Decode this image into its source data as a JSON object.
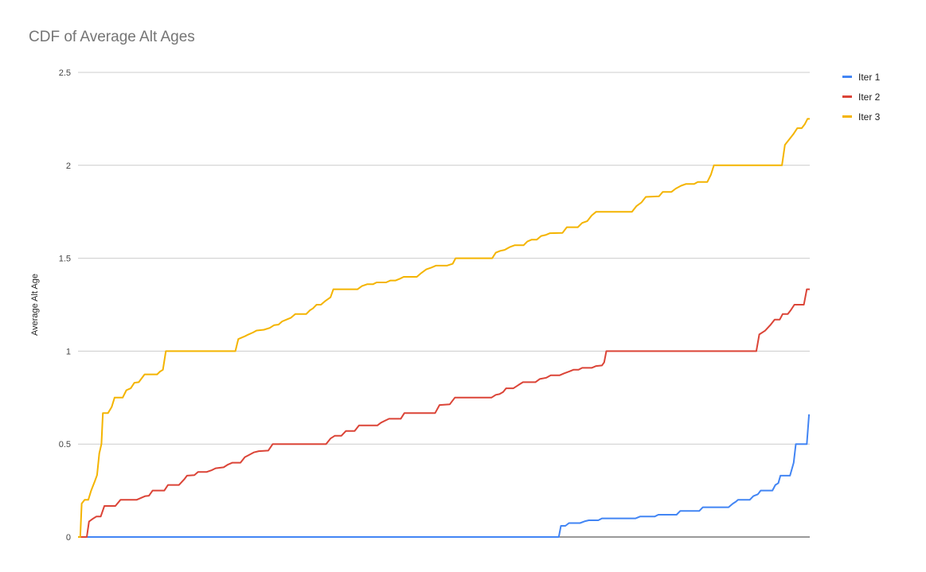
{
  "chart_data": {
    "type": "line",
    "title": "CDF of Average Alt Ages",
    "xlabel": "",
    "ylabel": "Average Alt Age",
    "ylim": [
      0,
      2.5
    ],
    "yticks": [
      "0",
      "0.5",
      "1",
      "1.5",
      "2",
      "2.5"
    ],
    "x_range": [
      0,
      100
    ],
    "grid": true,
    "legend_position": "right",
    "series": [
      {
        "name": "Iter 1",
        "color": "#4285f4",
        "points": [
          [
            0,
            0
          ],
          [
            65.7,
            0
          ],
          [
            66.0,
            0.06
          ],
          [
            66.6,
            0.06
          ],
          [
            67.1,
            0.075
          ],
          [
            68.6,
            0.075
          ],
          [
            69.3,
            0.085
          ],
          [
            69.8,
            0.09
          ],
          [
            71.1,
            0.09
          ],
          [
            71.6,
            0.1
          ],
          [
            76.2,
            0.1
          ],
          [
            76.8,
            0.11
          ],
          [
            78.8,
            0.11
          ],
          [
            79.3,
            0.12
          ],
          [
            81.8,
            0.12
          ],
          [
            82.3,
            0.14
          ],
          [
            84.9,
            0.14
          ],
          [
            85.4,
            0.16
          ],
          [
            88.9,
            0.16
          ],
          [
            89.5,
            0.18
          ],
          [
            89.9,
            0.19
          ],
          [
            90.2,
            0.2
          ],
          [
            91.8,
            0.2
          ],
          [
            92.3,
            0.22
          ],
          [
            92.9,
            0.23
          ],
          [
            93.3,
            0.25
          ],
          [
            94.9,
            0.25
          ],
          [
            95.3,
            0.28
          ],
          [
            95.7,
            0.29
          ],
          [
            96.0,
            0.33
          ],
          [
            97.3,
            0.33
          ],
          [
            97.8,
            0.4
          ],
          [
            98.1,
            0.5
          ],
          [
            99.6,
            0.5
          ],
          [
            99.9,
            0.66
          ]
        ]
      },
      {
        "name": "Iter 2",
        "color": "#db4437",
        "points": [
          [
            0,
            0
          ],
          [
            1.2,
            0
          ],
          [
            1.5,
            0.083
          ],
          [
            2.1,
            0.1
          ],
          [
            2.5,
            0.11
          ],
          [
            3.1,
            0.11
          ],
          [
            3.6,
            0.167
          ],
          [
            5.1,
            0.167
          ],
          [
            5.8,
            0.2
          ],
          [
            8.0,
            0.2
          ],
          [
            8.6,
            0.21
          ],
          [
            9.2,
            0.22
          ],
          [
            9.7,
            0.222
          ],
          [
            10.2,
            0.25
          ],
          [
            11.8,
            0.25
          ],
          [
            12.3,
            0.28
          ],
          [
            13.8,
            0.28
          ],
          [
            14.5,
            0.31
          ],
          [
            14.9,
            0.33
          ],
          [
            15.9,
            0.333
          ],
          [
            16.4,
            0.35
          ],
          [
            17.6,
            0.35
          ],
          [
            18.3,
            0.36
          ],
          [
            18.8,
            0.37
          ],
          [
            19.9,
            0.375
          ],
          [
            20.5,
            0.39
          ],
          [
            21.1,
            0.4
          ],
          [
            22.2,
            0.4
          ],
          [
            22.8,
            0.43
          ],
          [
            23.3,
            0.44
          ],
          [
            24.0,
            0.455
          ],
          [
            24.7,
            0.462
          ],
          [
            26.0,
            0.465
          ],
          [
            26.6,
            0.5
          ],
          [
            33.9,
            0.5
          ],
          [
            34.5,
            0.53
          ],
          [
            35.1,
            0.545
          ],
          [
            36.0,
            0.545
          ],
          [
            36.6,
            0.57
          ],
          [
            37.8,
            0.57
          ],
          [
            38.4,
            0.6
          ],
          [
            40.9,
            0.6
          ],
          [
            41.4,
            0.615
          ],
          [
            41.9,
            0.625
          ],
          [
            42.5,
            0.636
          ],
          [
            44.1,
            0.636
          ],
          [
            44.6,
            0.667
          ],
          [
            48.8,
            0.667
          ],
          [
            49.4,
            0.71
          ],
          [
            50.8,
            0.714
          ],
          [
            51.5,
            0.75
          ],
          [
            56.5,
            0.75
          ],
          [
            57.1,
            0.765
          ],
          [
            57.6,
            0.769
          ],
          [
            58.1,
            0.78
          ],
          [
            58.5,
            0.8
          ],
          [
            59.5,
            0.8
          ],
          [
            60.2,
            0.818
          ],
          [
            60.8,
            0.833
          ],
          [
            62.5,
            0.833
          ],
          [
            63.1,
            0.85
          ],
          [
            64.0,
            0.857
          ],
          [
            64.6,
            0.87
          ],
          [
            65.8,
            0.87
          ],
          [
            66.4,
            0.88
          ],
          [
            67.1,
            0.89
          ],
          [
            67.7,
            0.9
          ],
          [
            68.4,
            0.9
          ],
          [
            68.9,
            0.91
          ],
          [
            70.2,
            0.91
          ],
          [
            70.8,
            0.92
          ],
          [
            71.6,
            0.923
          ],
          [
            71.9,
            0.94
          ],
          [
            72.2,
            1.0
          ],
          [
            92.7,
            1.0
          ],
          [
            93.1,
            1.09
          ],
          [
            93.9,
            1.11
          ],
          [
            94.6,
            1.14
          ],
          [
            95.2,
            1.17
          ],
          [
            95.9,
            1.17
          ],
          [
            96.3,
            1.2
          ],
          [
            97.0,
            1.2
          ],
          [
            97.4,
            1.22
          ],
          [
            97.9,
            1.25
          ],
          [
            99.2,
            1.25
          ],
          [
            99.6,
            1.333
          ],
          [
            100,
            1.333
          ]
        ]
      },
      {
        "name": "Iter 3",
        "color": "#f4b400",
        "points": [
          [
            0,
            0
          ],
          [
            0.3,
            0
          ],
          [
            0.5,
            0.18
          ],
          [
            0.9,
            0.2
          ],
          [
            1.4,
            0.2
          ],
          [
            1.8,
            0.25
          ],
          [
            2.3,
            0.3
          ],
          [
            2.6,
            0.333
          ],
          [
            2.9,
            0.45
          ],
          [
            3.2,
            0.5
          ],
          [
            3.4,
            0.667
          ],
          [
            4.1,
            0.667
          ],
          [
            4.6,
            0.7
          ],
          [
            5.0,
            0.75
          ],
          [
            6.1,
            0.75
          ],
          [
            6.6,
            0.79
          ],
          [
            7.2,
            0.8
          ],
          [
            7.7,
            0.83
          ],
          [
            8.3,
            0.833
          ],
          [
            9.1,
            0.875
          ],
          [
            10.8,
            0.875
          ],
          [
            11.2,
            0.89
          ],
          [
            11.6,
            0.9
          ],
          [
            12.0,
            1.0
          ],
          [
            21.5,
            1.0
          ],
          [
            21.9,
            1.065
          ],
          [
            22.8,
            1.08
          ],
          [
            23.3,
            1.09
          ],
          [
            23.9,
            1.1
          ],
          [
            24.4,
            1.111
          ],
          [
            25.4,
            1.115
          ],
          [
            26.2,
            1.125
          ],
          [
            26.8,
            1.14
          ],
          [
            27.4,
            1.143
          ],
          [
            27.9,
            1.16
          ],
          [
            28.5,
            1.17
          ],
          [
            29.1,
            1.18
          ],
          [
            29.7,
            1.2
          ],
          [
            31.2,
            1.2
          ],
          [
            31.7,
            1.22
          ],
          [
            32.1,
            1.23
          ],
          [
            32.6,
            1.25
          ],
          [
            33.2,
            1.25
          ],
          [
            33.8,
            1.27
          ],
          [
            34.5,
            1.29
          ],
          [
            34.9,
            1.333
          ],
          [
            38.2,
            1.333
          ],
          [
            38.8,
            1.35
          ],
          [
            39.5,
            1.36
          ],
          [
            40.3,
            1.36
          ],
          [
            40.8,
            1.37
          ],
          [
            42.1,
            1.37
          ],
          [
            42.7,
            1.38
          ],
          [
            43.4,
            1.38
          ],
          [
            44.0,
            1.39
          ],
          [
            44.5,
            1.4
          ],
          [
            46.3,
            1.4
          ],
          [
            46.9,
            1.42
          ],
          [
            47.6,
            1.44
          ],
          [
            48.3,
            1.45
          ],
          [
            48.9,
            1.46
          ],
          [
            50.4,
            1.46
          ],
          [
            51.2,
            1.47
          ],
          [
            51.6,
            1.5
          ],
          [
            56.6,
            1.5
          ],
          [
            57.1,
            1.53
          ],
          [
            57.7,
            1.54
          ],
          [
            58.3,
            1.545
          ],
          [
            59.0,
            1.56
          ],
          [
            59.7,
            1.57
          ],
          [
            60.9,
            1.57
          ],
          [
            61.4,
            1.59
          ],
          [
            62.0,
            1.6
          ],
          [
            62.7,
            1.6
          ],
          [
            63.3,
            1.62
          ],
          [
            63.9,
            1.625
          ],
          [
            64.5,
            1.635
          ],
          [
            66.2,
            1.636
          ],
          [
            66.8,
            1.667
          ],
          [
            68.3,
            1.667
          ],
          [
            68.9,
            1.69
          ],
          [
            69.6,
            1.7
          ],
          [
            70.2,
            1.73
          ],
          [
            70.8,
            1.75
          ],
          [
            75.7,
            1.75
          ],
          [
            76.3,
            1.78
          ],
          [
            77.0,
            1.8
          ],
          [
            77.6,
            1.83
          ],
          [
            79.4,
            1.833
          ],
          [
            79.9,
            1.857
          ],
          [
            81.1,
            1.857
          ],
          [
            81.7,
            1.875
          ],
          [
            82.4,
            1.89
          ],
          [
            83.1,
            1.9
          ],
          [
            84.2,
            1.9
          ],
          [
            84.7,
            1.91
          ],
          [
            86.0,
            1.91
          ],
          [
            86.5,
            1.95
          ],
          [
            86.9,
            2.0
          ],
          [
            96.2,
            2.0
          ],
          [
            96.6,
            2.11
          ],
          [
            97.2,
            2.14
          ],
          [
            97.8,
            2.17
          ],
          [
            98.3,
            2.2
          ],
          [
            98.9,
            2.2
          ],
          [
            99.3,
            2.22
          ],
          [
            99.7,
            2.25
          ],
          [
            100,
            2.25
          ]
        ]
      }
    ]
  }
}
